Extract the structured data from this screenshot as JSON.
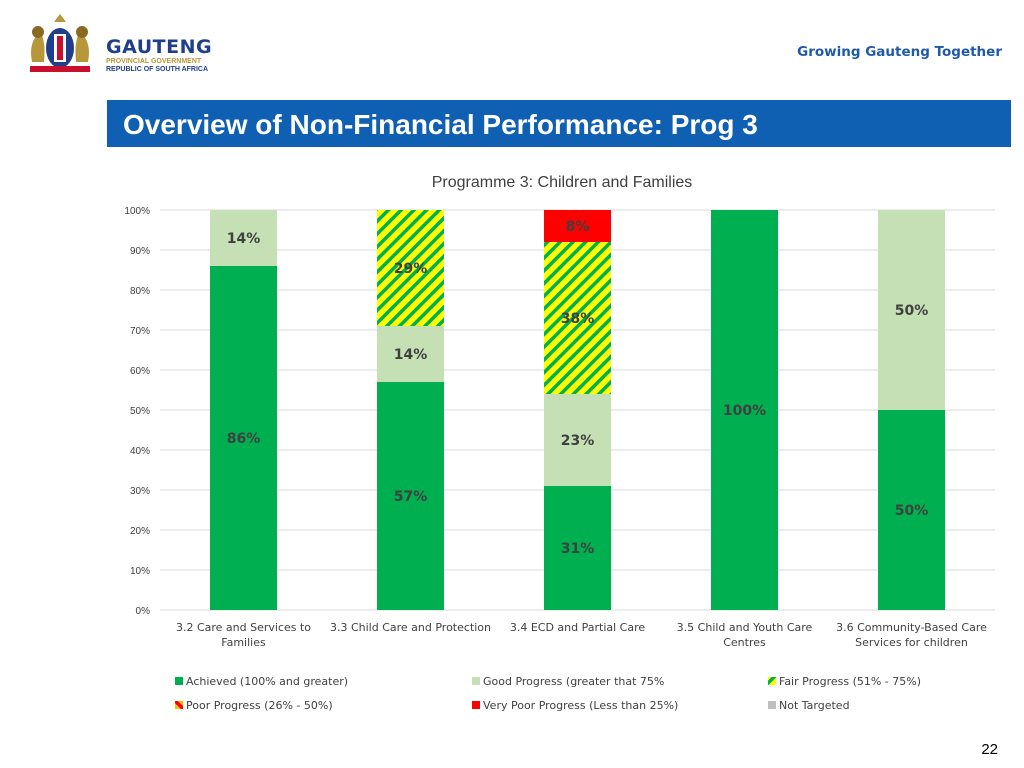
{
  "header": {
    "logo_name": "GAUTENG",
    "logo_sub1": "PROVINCIAL GOVERNMENT",
    "logo_sub2": "REPUBLIC OF SOUTH AFRICA",
    "tagline": "Growing Gauteng Together"
  },
  "slide": {
    "title": "Overview of Non-Financial Performance: Prog 3",
    "page_number": "22"
  },
  "colors": {
    "title_bar": "#0f5fb2",
    "achieved": "#00b050",
    "good": "#c5e0b4",
    "fair_a": "#ffff00",
    "fair_b": "#00b050",
    "poor_a": "#ffc000",
    "poor_b": "#ff0000",
    "very_poor": "#ff0000",
    "not_targeted": "#bfbfbf"
  },
  "chart_data": {
    "type": "bar",
    "stacked": true,
    "title": "Programme 3: Children and Families",
    "categories": [
      [
        "3.2  Care and Services to",
        "Families"
      ],
      [
        "3.3 Child Care and Protection"
      ],
      [
        "3.4  ECD and Partial Care"
      ],
      [
        "3.5 Child and Youth Care",
        "Centres"
      ],
      [
        "3.6 Community-Based Care",
        "Services for children"
      ]
    ],
    "y_ticks": [
      "0%",
      "10%",
      "20%",
      "30%",
      "40%",
      "50%",
      "60%",
      "70%",
      "80%",
      "90%",
      "100%"
    ],
    "ylim": [
      0,
      100
    ],
    "grid": true,
    "legend_position": "bottom",
    "series": [
      {
        "name": "Achieved (100%  and greater)",
        "key": "achieved",
        "values": [
          86,
          57,
          31,
          100,
          50
        ],
        "labels": [
          "86%",
          "57%",
          "31%",
          "100%",
          "50%"
        ]
      },
      {
        "name": "Good Progress (greater that 75%",
        "key": "good",
        "values": [
          14,
          14,
          23,
          0,
          50
        ],
        "labels": [
          "14%",
          "14%",
          "23%",
          "",
          "50%"
        ]
      },
      {
        "name": "Fair Progress (51% - 75%)",
        "key": "fair",
        "values": [
          0,
          29,
          38,
          0,
          0
        ],
        "labels": [
          "",
          "29%",
          "38%",
          "",
          ""
        ]
      },
      {
        "name": "Poor Progress (26% - 50%)",
        "key": "poor",
        "values": [
          0,
          0,
          0,
          0,
          0
        ],
        "labels": [
          "",
          "",
          "",
          "",
          ""
        ]
      },
      {
        "name": "Very Poor Progress (Less than 25%)",
        "key": "very_poor",
        "values": [
          0,
          0,
          8,
          0,
          0
        ],
        "labels": [
          "",
          "",
          "8%",
          "",
          ""
        ]
      },
      {
        "name": "Not Targeted",
        "key": "not_targeted",
        "values": [
          0,
          0,
          0,
          0,
          0
        ],
        "labels": [
          "",
          "",
          "",
          "",
          ""
        ]
      }
    ]
  }
}
